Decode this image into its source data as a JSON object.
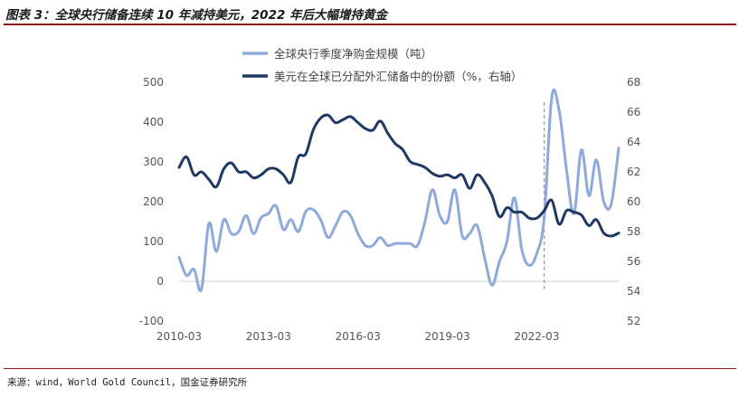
{
  "title": "图表 3：全球央行储备连续 10 年减持美元，2022 年后大幅增持黄金",
  "source": "来源：wind，World Gold Council，国金证券研究所",
  "colors": {
    "gold_series": "#8EA9DB",
    "usd_series": "#1F3864",
    "divider": "#999999",
    "rule": "#8a1a1a"
  },
  "chart_data": {
    "type": "line",
    "title": "",
    "x_tick_labels": [
      "2010-03",
      "2013-03",
      "2016-03",
      "2019-03",
      "2022-03"
    ],
    "x_start": "2010-03",
    "x_end": "2024-12",
    "y_left_range": [
      -100,
      500
    ],
    "y_left_ticks": [
      "500",
      "400",
      "300",
      "200",
      "100",
      "0",
      "-100"
    ],
    "y_right_range": [
      52,
      68
    ],
    "y_right_ticks": [
      "68",
      "66",
      "64",
      "62",
      "60",
      "58",
      "56",
      "54",
      "52"
    ],
    "legend_position": "top-center",
    "divider_date": "2022-06",
    "series": [
      {
        "name": "全球央行季度净购金规模（吨）",
        "axis": "left",
        "color": "#8EA9DB",
        "points": [
          [
            "2010-03",
            60
          ],
          [
            "2010-06",
            15
          ],
          [
            "2010-09",
            30
          ],
          [
            "2010-12",
            -20
          ],
          [
            "2011-03",
            145
          ],
          [
            "2011-06",
            75
          ],
          [
            "2011-09",
            155
          ],
          [
            "2011-12",
            120
          ],
          [
            "2012-03",
            125
          ],
          [
            "2012-06",
            165
          ],
          [
            "2012-09",
            120
          ],
          [
            "2012-12",
            160
          ],
          [
            "2013-03",
            170
          ],
          [
            "2013-06",
            190
          ],
          [
            "2013-09",
            130
          ],
          [
            "2013-12",
            155
          ],
          [
            "2014-03",
            125
          ],
          [
            "2014-06",
            175
          ],
          [
            "2014-09",
            180
          ],
          [
            "2014-12",
            155
          ],
          [
            "2015-03",
            110
          ],
          [
            "2015-06",
            140
          ],
          [
            "2015-09",
            175
          ],
          [
            "2015-12",
            165
          ],
          [
            "2016-03",
            120
          ],
          [
            "2016-06",
            90
          ],
          [
            "2016-09",
            90
          ],
          [
            "2016-12",
            110
          ],
          [
            "2017-03",
            90
          ],
          [
            "2017-06",
            95
          ],
          [
            "2017-09",
            95
          ],
          [
            "2017-12",
            95
          ],
          [
            "2018-03",
            90
          ],
          [
            "2018-06",
            150
          ],
          [
            "2018-09",
            230
          ],
          [
            "2018-12",
            165
          ],
          [
            "2019-03",
            150
          ],
          [
            "2019-06",
            230
          ],
          [
            "2019-09",
            115
          ],
          [
            "2019-12",
            120
          ],
          [
            "2020-03",
            140
          ],
          [
            "2020-06",
            60
          ],
          [
            "2020-09",
            -10
          ],
          [
            "2020-12",
            50
          ],
          [
            "2021-03",
            100
          ],
          [
            "2021-06",
            210
          ],
          [
            "2021-09",
            80
          ],
          [
            "2021-12",
            40
          ],
          [
            "2022-03",
            70
          ],
          [
            "2022-06",
            160
          ],
          [
            "2022-09",
            460
          ],
          [
            "2022-12",
            430
          ],
          [
            "2023-03",
            280
          ],
          [
            "2023-06",
            170
          ],
          [
            "2023-09",
            330
          ],
          [
            "2023-12",
            215
          ],
          [
            "2024-03",
            305
          ],
          [
            "2024-06",
            200
          ],
          [
            "2024-09",
            195
          ],
          [
            "2024-12",
            335
          ]
        ]
      },
      {
        "name": "美元在全球已分配外汇储备中的份额（%，右轴）",
        "axis": "right",
        "color": "#1F3864",
        "points": [
          [
            "2010-03",
            62.3
          ],
          [
            "2010-06",
            63.0
          ],
          [
            "2010-09",
            61.8
          ],
          [
            "2010-12",
            62.0
          ],
          [
            "2011-03",
            61.5
          ],
          [
            "2011-06",
            61.0
          ],
          [
            "2011-09",
            62.2
          ],
          [
            "2011-12",
            62.6
          ],
          [
            "2012-03",
            62.0
          ],
          [
            "2012-06",
            62.0
          ],
          [
            "2012-09",
            61.6
          ],
          [
            "2012-12",
            61.8
          ],
          [
            "2013-03",
            62.2
          ],
          [
            "2013-06",
            62.2
          ],
          [
            "2013-09",
            61.8
          ],
          [
            "2013-12",
            61.3
          ],
          [
            "2014-03",
            63.0
          ],
          [
            "2014-06",
            63.2
          ],
          [
            "2014-09",
            64.8
          ],
          [
            "2014-12",
            65.6
          ],
          [
            "2015-03",
            65.8
          ],
          [
            "2015-06",
            65.3
          ],
          [
            "2015-09",
            65.5
          ],
          [
            "2015-12",
            65.7
          ],
          [
            "2016-03",
            65.3
          ],
          [
            "2016-06",
            64.9
          ],
          [
            "2016-09",
            64.8
          ],
          [
            "2016-12",
            65.4
          ],
          [
            "2017-03",
            64.6
          ],
          [
            "2017-06",
            63.9
          ],
          [
            "2017-09",
            63.5
          ],
          [
            "2017-12",
            62.7
          ],
          [
            "2018-03",
            62.5
          ],
          [
            "2018-06",
            62.3
          ],
          [
            "2018-09",
            61.9
          ],
          [
            "2018-12",
            61.7
          ],
          [
            "2019-03",
            61.8
          ],
          [
            "2019-06",
            61.6
          ],
          [
            "2019-09",
            61.8
          ],
          [
            "2019-12",
            60.9
          ],
          [
            "2020-03",
            61.8
          ],
          [
            "2020-06",
            61.3
          ],
          [
            "2020-09",
            60.4
          ],
          [
            "2020-12",
            59.0
          ],
          [
            "2021-03",
            59.6
          ],
          [
            "2021-06",
            59.3
          ],
          [
            "2021-09",
            59.3
          ],
          [
            "2021-12",
            58.9
          ],
          [
            "2022-03",
            58.9
          ],
          [
            "2022-06",
            59.4
          ],
          [
            "2022-09",
            60.1
          ],
          [
            "2022-12",
            58.5
          ],
          [
            "2023-03",
            59.4
          ],
          [
            "2023-06",
            59.3
          ],
          [
            "2023-09",
            59.1
          ],
          [
            "2023-12",
            58.4
          ],
          [
            "2024-03",
            58.8
          ],
          [
            "2024-06",
            57.9
          ],
          [
            "2024-09",
            57.7
          ],
          [
            "2024-12",
            57.9
          ]
        ]
      }
    ]
  }
}
